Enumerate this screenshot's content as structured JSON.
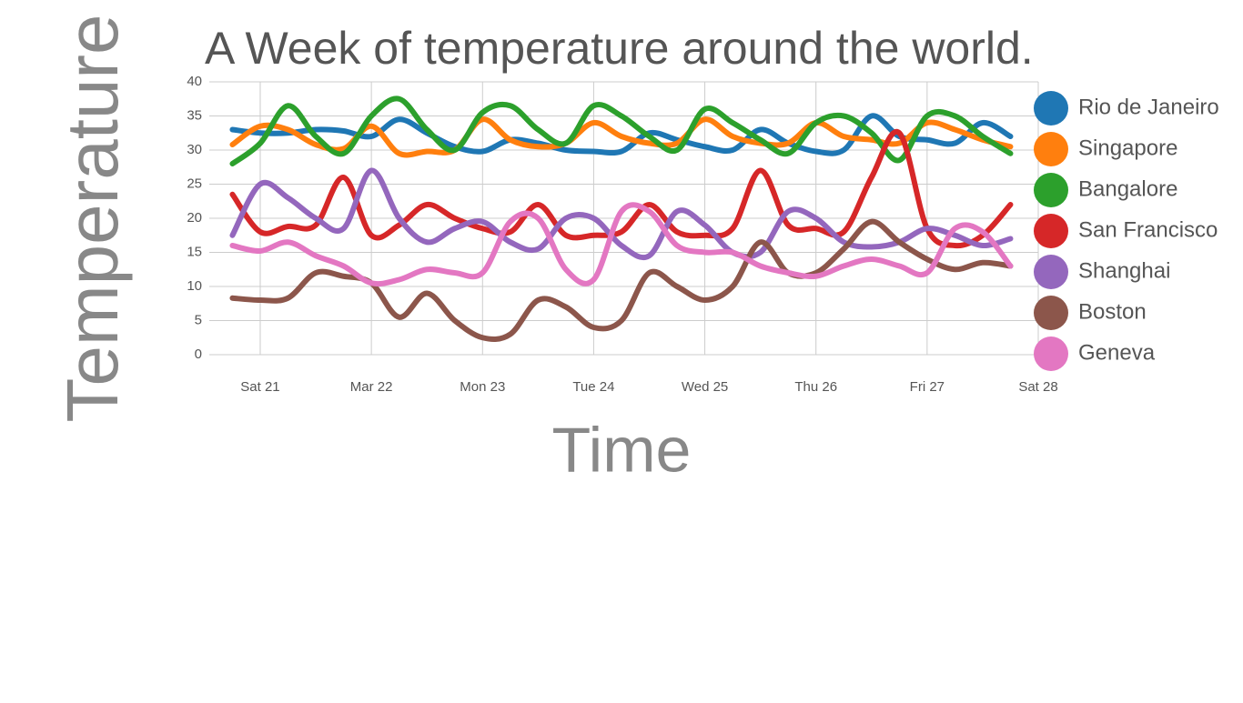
{
  "chart_data": {
    "type": "line",
    "title": "A Week of temperature around the world.",
    "x_label": "Time",
    "y_label": "Temperature",
    "x": [
      -6,
      0,
      6,
      12,
      18,
      24,
      30,
      36,
      42,
      48,
      54,
      60,
      66,
      72,
      78,
      84,
      90,
      96,
      102,
      108,
      114,
      120,
      126,
      132,
      138,
      144,
      150,
      156,
      162
    ],
    "xlim": [
      -11,
      168
    ],
    "xticks": [
      {
        "value": 0,
        "label": "Sat 21"
      },
      {
        "value": 24,
        "label": "Mar 22"
      },
      {
        "value": 48,
        "label": "Mon 23"
      },
      {
        "value": 72,
        "label": "Tue 24"
      },
      {
        "value": 96,
        "label": "Wed 25"
      },
      {
        "value": 120,
        "label": "Thu 26"
      },
      {
        "value": 144,
        "label": "Fri 27"
      },
      {
        "value": 168,
        "label": "Sat 28"
      }
    ],
    "ylim": [
      0,
      40
    ],
    "yticks": [
      0,
      5,
      10,
      15,
      20,
      25,
      30,
      35,
      40
    ],
    "grid": true,
    "series": [
      {
        "name": "Rio de Janeiro",
        "color": "#1f77b4",
        "values": [
          33,
          32.5,
          32.5,
          33,
          32.8,
          32,
          34.5,
          32.5,
          30.5,
          29.8,
          31.5,
          31,
          30,
          29.8,
          29.8,
          32.5,
          31.5,
          30.5,
          30,
          33,
          31,
          29.8,
          30,
          35,
          32,
          31.5,
          31,
          34,
          32
        ]
      },
      {
        "name": "Singapore",
        "color": "#ff7f0e",
        "values": [
          30.8,
          33.5,
          33,
          30.8,
          30.2,
          33.5,
          29.5,
          29.8,
          30,
          34.5,
          31.5,
          30.5,
          31,
          34,
          32,
          31,
          31,
          34.5,
          32,
          31,
          31,
          34,
          32,
          31.5,
          31,
          34,
          33,
          31.5,
          30.5
        ]
      },
      {
        "name": "Bangalore",
        "color": "#2ca02c",
        "values": [
          28,
          31,
          36.5,
          32,
          29.5,
          35,
          37.5,
          33,
          30,
          35.5,
          36.5,
          33,
          31,
          36.5,
          35,
          32,
          30,
          36,
          34,
          31.5,
          29.5,
          34,
          35,
          32.5,
          28.5,
          35,
          35,
          32,
          29.5
        ]
      },
      {
        "name": "San Francisco",
        "color": "#d62728",
        "values": [
          23.5,
          18,
          18.8,
          19,
          26,
          17.5,
          19,
          22,
          20,
          18.5,
          18,
          22,
          17.5,
          17.5,
          18,
          22,
          18,
          17.5,
          18.5,
          27,
          19,
          18.5,
          18,
          26,
          32.5,
          18.5,
          16,
          17.5,
          22
        ]
      },
      {
        "name": "Shanghai",
        "color": "#9467bd",
        "values": [
          17.5,
          25,
          23,
          20,
          18.5,
          27,
          20,
          16.5,
          18.5,
          19.5,
          16.5,
          15.5,
          20,
          20,
          16,
          14.5,
          21,
          19,
          15,
          15,
          21,
          20,
          16.5,
          15.8,
          16.5,
          18.5,
          17.5,
          16,
          17
        ]
      },
      {
        "name": "Boston",
        "color": "#8c564b",
        "values": [
          8.3,
          8,
          8.3,
          12,
          11.5,
          10.5,
          5.5,
          9,
          5,
          2.5,
          3,
          8,
          7,
          4,
          5,
          12,
          10,
          8,
          10,
          16.5,
          12,
          12,
          15.5,
          19.5,
          16.5,
          14,
          12.5,
          13.5,
          13
        ]
      },
      {
        "name": "Geneva",
        "color": "#e377c2",
        "values": [
          16,
          15.2,
          16.5,
          14.5,
          13,
          10.5,
          11,
          12.5,
          12,
          12,
          19.5,
          20,
          12.5,
          11,
          21,
          21,
          16,
          15,
          15,
          13,
          12,
          11.5,
          13,
          14,
          13,
          12,
          18.5,
          18,
          13
        ]
      }
    ]
  }
}
